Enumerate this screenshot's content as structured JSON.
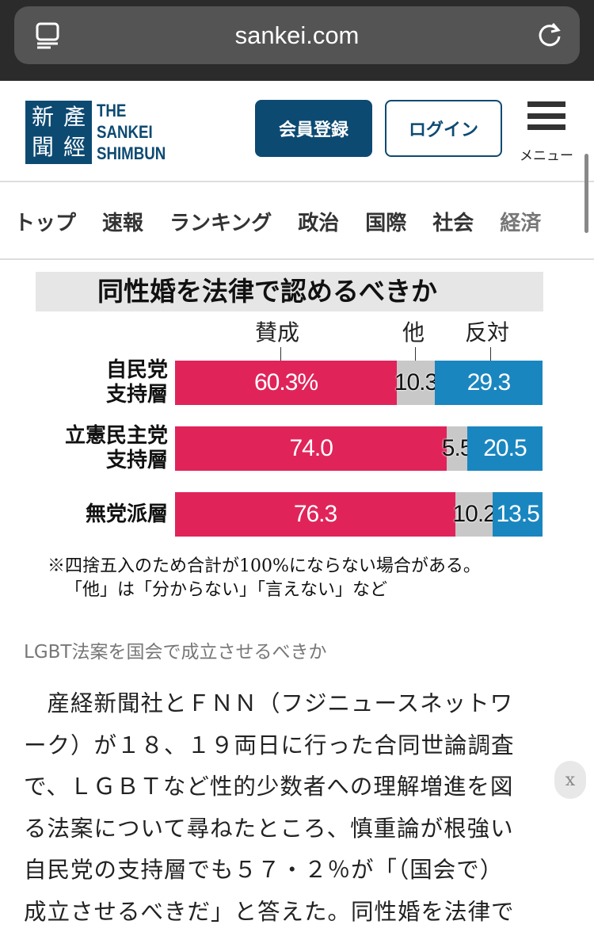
{
  "browser": {
    "url": "sankei.com"
  },
  "header": {
    "logo_kanji": [
      "產",
      "經",
      "新",
      "聞"
    ],
    "logo_text": [
      "THE",
      "SANKEI",
      "SHIMBUN"
    ],
    "register_label": "会員登録",
    "login_label": "ログイン",
    "menu_label": "メニュー"
  },
  "nav": {
    "items": [
      "トップ",
      "速報",
      "ランキング",
      "政治",
      "国際",
      "社会",
      "経済"
    ]
  },
  "chart_data": {
    "type": "bar",
    "stacked": true,
    "orientation": "horizontal",
    "title": "同性婚を法律で認めるべきか",
    "legend": [
      "賛成",
      "他",
      "反対"
    ],
    "categories": [
      [
        "自民党",
        "支持層"
      ],
      [
        "立憲民主党",
        "支持層"
      ],
      [
        "無党派層"
      ]
    ],
    "series": [
      {
        "name": "賛成",
        "color": "#e0245a",
        "values": [
          60.3,
          74.0,
          76.3
        ],
        "labels": [
          "60.3%",
          "74.0",
          "76.3"
        ]
      },
      {
        "name": "他",
        "color": "#c8c8c8",
        "values": [
          10.3,
          5.5,
          10.2
        ],
        "labels": [
          "10.3",
          "5.5",
          "10.2"
        ]
      },
      {
        "name": "反対",
        "color": "#1a86c0",
        "values": [
          29.3,
          20.5,
          13.5
        ],
        "labels": [
          "29.3",
          "20.5",
          "13.5"
        ]
      }
    ],
    "notes": [
      "※四捨五入のため合計が100%にならない場合がある。",
      "「他」は「分からない」「言えない」など"
    ]
  },
  "caption": "LGBT法案を国会で成立させるべきか",
  "article": {
    "lines": [
      "　産経新聞社とＦＮＮ（フジニュースネットワ",
      "ーク）が１８、１９両日に行った合同世論調査",
      "で、ＬＧＢＴなど性的少数者への理解増進を図",
      "る法案について尋ねたところ、慎重論が根強い",
      "自民党の支持層でも５７・２％が「（国会で）",
      "成立させるべきだ」と答えた。同性婚を法律で"
    ]
  },
  "close_label": "x"
}
